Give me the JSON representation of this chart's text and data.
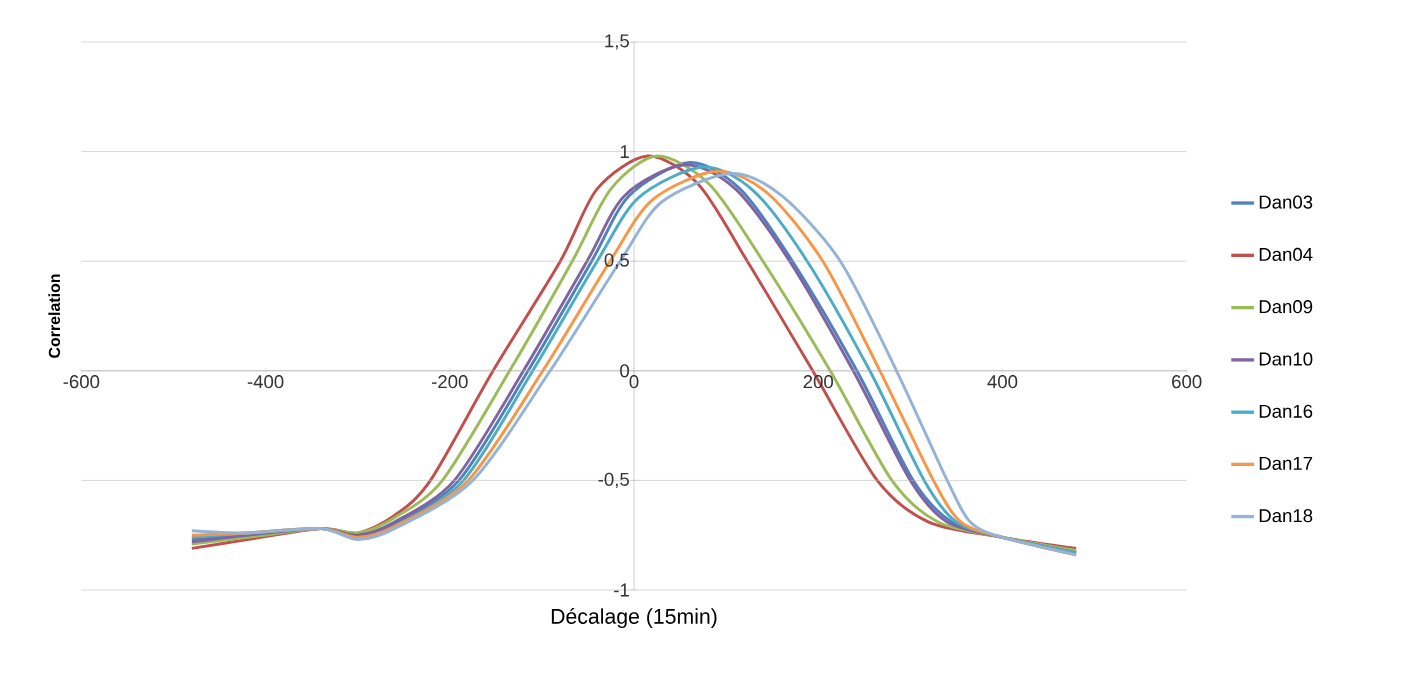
{
  "chart_data": {
    "type": "line",
    "xlabel": "Décalage (15min)",
    "ylabel": "Correlation",
    "xlim": [
      -600,
      600
    ],
    "ylim": [
      -1,
      1.5
    ],
    "xticks": [
      -600,
      -400,
      -200,
      0,
      200,
      400,
      600
    ],
    "yticks": [
      -1,
      {
        "value": -0.5,
        "label": "-0,5"
      },
      0,
      {
        "value": 0.5,
        "label": "0,5"
      },
      1,
      {
        "value": 1.5,
        "label": "1,5"
      }
    ],
    "grid": "y",
    "legend": "right",
    "marker": "none",
    "line_style": "solid",
    "series": [
      {
        "name": "Dan03",
        "color": "#4f81bd",
        "x": [
          -480,
          -420,
          -340,
          -300,
          -260,
          -190,
          -115,
          -46,
          -5,
          60,
          115,
          172,
          242,
          303,
          345,
          400,
          480
        ],
        "values": [
          -0.77,
          -0.75,
          -0.72,
          -0.75,
          -0.7,
          -0.5,
          0,
          0.5,
          0.8,
          0.95,
          0.83,
          0.5,
          0,
          -0.5,
          -0.69,
          -0.76,
          -0.83
        ]
      },
      {
        "name": "Dan04",
        "color": "#c0504d",
        "x": [
          -480,
          -420,
          -340,
          -300,
          -260,
          -221,
          -153,
          -80,
          -40,
          15,
          70,
          123,
          194,
          264,
          320,
          400,
          480
        ],
        "values": [
          -0.81,
          -0.77,
          -0.72,
          -0.74,
          -0.66,
          -0.5,
          0,
          0.5,
          0.83,
          0.98,
          0.85,
          0.5,
          0,
          -0.5,
          -0.69,
          -0.76,
          -0.81
        ]
      },
      {
        "name": "Dan09",
        "color": "#9bbb59",
        "x": [
          -480,
          -420,
          -340,
          -300,
          -260,
          -208,
          -135,
          -67,
          -25,
          25,
          82,
          140,
          213,
          280,
          330,
          400,
          480
        ],
        "values": [
          -0.79,
          -0.76,
          -0.72,
          -0.74,
          -0.67,
          -0.5,
          0,
          0.5,
          0.83,
          0.98,
          0.85,
          0.5,
          0,
          -0.5,
          -0.69,
          -0.76,
          -0.82
        ]
      },
      {
        "name": "Dan10",
        "color": "#8064a2",
        "x": [
          -480,
          -420,
          -340,
          -300,
          -260,
          -195,
          -120,
          -51,
          -10,
          55,
          110,
          169,
          238,
          300,
          340,
          400,
          480
        ],
        "values": [
          -0.78,
          -0.75,
          -0.72,
          -0.75,
          -0.69,
          -0.5,
          0,
          0.5,
          0.8,
          0.94,
          0.83,
          0.5,
          0,
          -0.5,
          -0.69,
          -0.76,
          -0.83
        ]
      },
      {
        "name": "Dan16",
        "color": "#4bacc6",
        "x": [
          -480,
          -420,
          -340,
          -300,
          -260,
          -185,
          -110,
          -40,
          5,
          75,
          130,
          188,
          256,
          315,
          350,
          400,
          480
        ],
        "values": [
          -0.76,
          -0.74,
          -0.72,
          -0.76,
          -0.71,
          -0.5,
          0,
          0.5,
          0.79,
          0.93,
          0.82,
          0.5,
          0,
          -0.5,
          -0.69,
          -0.76,
          -0.83
        ]
      },
      {
        "name": "Dan17",
        "color": "#f79646",
        "x": [
          -480,
          -420,
          -340,
          -300,
          -260,
          -180,
          -99,
          -26,
          20,
          90,
          145,
          205,
          267,
          325,
          355,
          400,
          480
        ],
        "values": [
          -0.75,
          -0.74,
          -0.72,
          -0.76,
          -0.71,
          -0.5,
          0,
          0.5,
          0.78,
          0.91,
          0.81,
          0.5,
          0,
          -0.5,
          -0.69,
          -0.76,
          -0.84
        ]
      },
      {
        "name": "Dan18",
        "color": "#95b3d7",
        "x": [
          -480,
          -420,
          -340,
          -300,
          -260,
          -175,
          -91,
          -15,
          30,
          105,
          160,
          224,
          285,
          340,
          365,
          400,
          480
        ],
        "values": [
          -0.73,
          -0.74,
          -0.72,
          -0.77,
          -0.72,
          -0.5,
          0,
          0.5,
          0.77,
          0.9,
          0.8,
          0.5,
          0,
          -0.5,
          -0.69,
          -0.76,
          -0.84
        ]
      }
    ]
  }
}
